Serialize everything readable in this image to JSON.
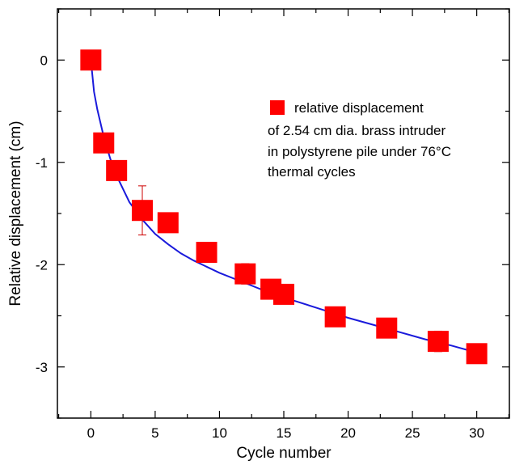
{
  "chart_data": {
    "type": "scatter",
    "xlabel": "Cycle number",
    "ylabel": "Relative displacement (cm)",
    "xlim": [
      -2.6,
      32.6
    ],
    "ylim": [
      -3.5,
      0.5
    ],
    "xticks": [
      0,
      5,
      10,
      15,
      20,
      25,
      30
    ],
    "yticks": [
      0,
      -1,
      -2,
      -3
    ],
    "xtick_labels": [
      "0",
      "5",
      "10",
      "15",
      "20",
      "25",
      "30"
    ],
    "ytick_labels": [
      "0",
      "-1",
      "-2",
      "-3"
    ],
    "grid": false,
    "legend_position": "top-right",
    "legend_lines": [
      "relative displacement",
      "of 2.54 cm dia. brass intruder",
      "in polystyrene pile under 76°C",
      "thermal cycles"
    ],
    "colors": {
      "marker": "#ff0000",
      "error_bar": "#cc0000",
      "fit": "#1a1adb"
    },
    "series": [
      {
        "marker": "square",
        "x": [
          0,
          1,
          2,
          4,
          6,
          9,
          12,
          14,
          15,
          19,
          23,
          27,
          30
        ],
        "y": [
          0.0,
          -0.81,
          -1.08,
          -1.47,
          -1.59,
          -1.88,
          -2.09,
          -2.24,
          -2.29,
          -2.51,
          -2.62,
          -2.75,
          -2.87
        ],
        "err": [
          0.0,
          0.0,
          0.0,
          0.24,
          0.04,
          0.0,
          0.1,
          0.0,
          0.0,
          0.0,
          0.05,
          0.1,
          0.0
        ]
      }
    ],
    "fit": {
      "x": [
        0,
        0.25,
        0.5,
        1,
        1.5,
        2,
        3,
        4,
        5,
        6,
        7,
        8,
        9,
        10,
        12,
        14,
        16,
        18,
        20,
        22,
        24,
        26,
        28,
        30
      ],
      "y": [
        0.0,
        -0.31,
        -0.48,
        -0.75,
        -0.96,
        -1.13,
        -1.39,
        -1.56,
        -1.7,
        -1.8,
        -1.89,
        -1.96,
        -2.02,
        -2.08,
        -2.18,
        -2.28,
        -2.36,
        -2.44,
        -2.52,
        -2.59,
        -2.66,
        -2.73,
        -2.79,
        -2.86
      ]
    }
  }
}
